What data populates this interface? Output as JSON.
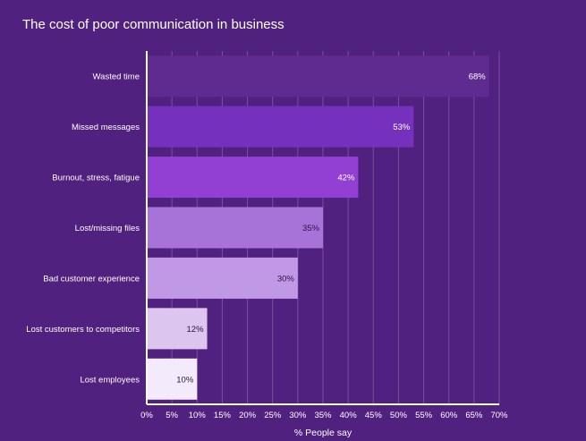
{
  "chart_data": {
    "type": "bar",
    "orientation": "horizontal",
    "title": "The cost of poor communication in business",
    "xlabel": "% People say",
    "ylabel": "",
    "xlim": [
      0,
      70
    ],
    "tick_step": 5,
    "tick_suffix": "%",
    "grid": true,
    "categories": [
      "Wasted time",
      "Missed messages",
      "Burnout, stress, fatigue",
      "Lost/missing files",
      "Bad customer experience",
      "Lost customers to competitors",
      "Lost employees"
    ],
    "values": [
      68,
      53,
      42,
      35,
      30,
      12,
      10
    ],
    "value_labels": [
      "68%",
      "53%",
      "42%",
      "35%",
      "30%",
      "12%",
      "10%"
    ],
    "bar_colors": [
      "#5f2b91",
      "#7630be",
      "#9240d4",
      "#a873d8",
      "#c198e6",
      "#dcc6f0",
      "#f3ebfb"
    ],
    "label_colors": [
      "#ffffff",
      "#ffffff",
      "#ffffff",
      "#2a1440",
      "#2a1440",
      "#2a1440",
      "#2a1440"
    ]
  }
}
